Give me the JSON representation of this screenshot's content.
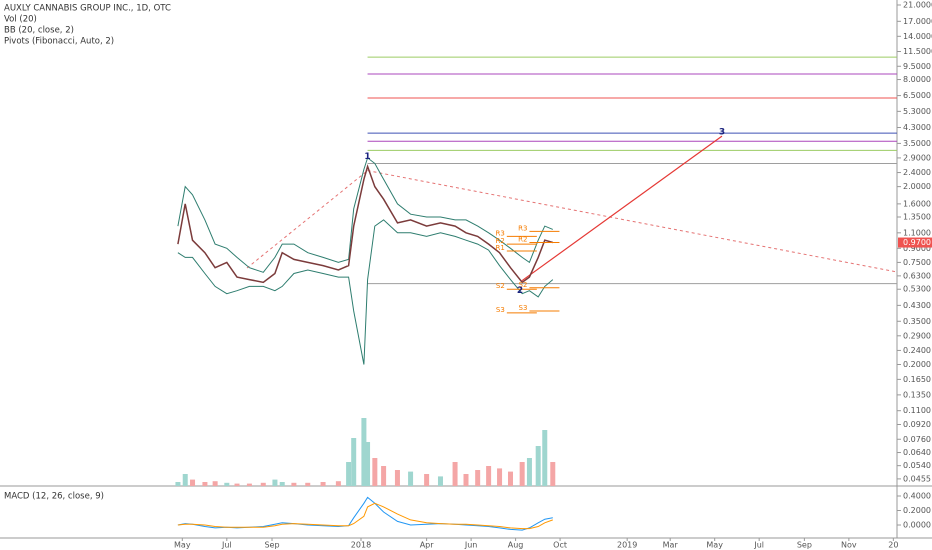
{
  "chart_data": [
    {
      "type": "line",
      "title": "AUXLY CANNABIS GROUP INC., 1D, OTC",
      "indicators": [
        "Vol (20)",
        "BB (20, close, 2)",
        "Pivots (Fibonacci, Auto, 2)"
      ],
      "log_scale": true,
      "xlim": [
        "2016-08-24",
        "2020-01-06"
      ],
      "ylim": [
        0.0415,
        22.4
      ],
      "yticks": [
        {
          "value": 21,
          "label": "21.0000"
        },
        {
          "value": 17,
          "label": "17.0000"
        },
        {
          "value": 14,
          "label": "14.0000"
        },
        {
          "value": 11.5,
          "label": "11.5000"
        },
        {
          "value": 9.5,
          "label": "9.5000"
        },
        {
          "value": 8,
          "label": "8.0000"
        },
        {
          "value": 6.5,
          "label": "6.5000"
        },
        {
          "value": 5.3,
          "label": "5.3000"
        },
        {
          "value": 4.3,
          "label": "4.3000"
        },
        {
          "value": 3.5,
          "label": "3.5000"
        },
        {
          "value": 2.9,
          "label": "2.9000"
        },
        {
          "value": 2.4,
          "label": "2.4000"
        },
        {
          "value": 2,
          "label": "2.0000"
        },
        {
          "value": 1.6,
          "label": "1.6000"
        },
        {
          "value": 1.35,
          "label": "1.3500"
        },
        {
          "value": 1.1,
          "label": "1.1000"
        },
        {
          "value": 0.9,
          "label": "0.9000"
        },
        {
          "value": 0.75,
          "label": "0.7500"
        },
        {
          "value": 0.63,
          "label": "0.6300"
        },
        {
          "value": 0.53,
          "label": "0.5300"
        },
        {
          "value": 0.43,
          "label": "0.4300"
        },
        {
          "value": 0.35,
          "label": "0.3500"
        },
        {
          "value": 0.29,
          "label": "0.2900"
        },
        {
          "value": 0.24,
          "label": "0.2400"
        },
        {
          "value": 0.2,
          "label": "0.2000"
        },
        {
          "value": 0.165,
          "label": "0.1650"
        },
        {
          "value": 0.135,
          "label": "0.1350"
        },
        {
          "value": 0.11,
          "label": "0.1100"
        },
        {
          "value": 0.092,
          "label": "0.0920"
        },
        {
          "value": 0.076,
          "label": "0.0760"
        },
        {
          "value": 0.064,
          "label": "0.0640"
        },
        {
          "value": 0.054,
          "label": "0.0540"
        },
        {
          "value": 0.0455,
          "label": "0.0455"
        }
      ],
      "last_price": {
        "value": 0.97,
        "label": "0.9700",
        "color": "#ef5350"
      },
      "x": [
        "2017-04-25",
        "2017-05-05",
        "2017-05-15",
        "2017-06-01",
        "2017-06-15",
        "2017-07-01",
        "2017-07-15",
        "2017-08-01",
        "2017-08-20",
        "2017-09-05",
        "2017-09-15",
        "2017-10-01",
        "2017-10-20",
        "2017-11-10",
        "2017-12-01",
        "2017-12-15",
        "2017-12-22",
        "2018-01-05",
        "2018-01-10",
        "2018-01-20",
        "2018-02-01",
        "2018-02-20",
        "2018-03-10",
        "2018-04-01",
        "2018-04-20",
        "2018-05-10",
        "2018-05-25",
        "2018-06-10",
        "2018-06-25",
        "2018-07-10",
        "2018-07-25",
        "2018-08-10",
        "2018-08-20",
        "2018-09-01",
        "2018-09-10",
        "2018-09-21"
      ],
      "series": [
        {
          "color": "#7b3b3b",
          "values": [
            0.95,
            1.6,
            1.0,
            0.85,
            0.7,
            0.75,
            0.62,
            0.6,
            0.58,
            0.65,
            0.85,
            0.78,
            0.75,
            0.72,
            0.68,
            0.72,
            1.2,
            2.2,
            2.6,
            2.0,
            1.7,
            1.25,
            1.3,
            1.2,
            1.25,
            1.2,
            1.1,
            1.05,
            0.95,
            0.85,
            0.7,
            0.58,
            0.62,
            0.8,
            1.0,
            0.97
          ]
        },
        {
          "color": "#2e7d6f",
          "values": [
            1.2,
            2.0,
            1.8,
            1.3,
            0.95,
            0.9,
            0.8,
            0.7,
            0.66,
            0.8,
            0.95,
            0.95,
            0.85,
            0.8,
            0.75,
            0.78,
            1.5,
            2.5,
            2.9,
            2.7,
            2.2,
            1.6,
            1.4,
            1.35,
            1.35,
            1.3,
            1.3,
            1.2,
            1.1,
            1.0,
            0.9,
            0.8,
            0.75,
            1.0,
            1.2,
            1.15
          ]
        },
        {
          "color": "#2e7d6f",
          "values": [
            0.85,
            0.8,
            0.8,
            0.65,
            0.55,
            0.5,
            0.52,
            0.55,
            0.55,
            0.52,
            0.55,
            0.65,
            0.68,
            0.65,
            0.62,
            0.62,
            0.4,
            0.2,
            0.6,
            1.2,
            1.3,
            1.1,
            1.1,
            1.05,
            1.1,
            1.05,
            1.0,
            0.95,
            0.88,
            0.72,
            0.6,
            0.5,
            0.52,
            0.48,
            0.55,
            0.6
          ]
        }
      ],
      "volume": {
        "ylim": [
          0,
          100
        ],
        "up_color": "#9fd6cf",
        "down_color": "#f4a6a6",
        "values": [
          5,
          15,
          8,
          5,
          6,
          4,
          3,
          3,
          4,
          8,
          5,
          4,
          4,
          5,
          6,
          30,
          60,
          85,
          55,
          35,
          25,
          20,
          18,
          15,
          12,
          30,
          15,
          20,
          25,
          22,
          18,
          30,
          35,
          50,
          70,
          30
        ]
      },
      "levels": [
        {
          "value": 10.7,
          "color": "#9ccc65"
        },
        {
          "value": 8.6,
          "color": "#ab47bc"
        },
        {
          "value": 6.3,
          "color": "#ef5350"
        },
        {
          "value": 4.0,
          "color": "#3f51b5"
        },
        {
          "value": 3.6,
          "color": "#ab47bc"
        },
        {
          "value": 3.2,
          "color": "#9ccc65"
        },
        {
          "value": 2.7,
          "color": "#9e9e9e"
        },
        {
          "value": 0.57,
          "color": "#9e9e9e"
        }
      ],
      "pivots": {
        "color": "#f57c00",
        "items": [
          {
            "label": "R3",
            "value": 1.05,
            "x": "2018-07-20"
          },
          {
            "label": "R2",
            "value": 0.95,
            "x": "2018-07-20"
          },
          {
            "label": "R1",
            "value": 0.87,
            "x": "2018-07-20"
          },
          {
            "label": "S2",
            "value": 0.53,
            "x": "2018-07-20"
          },
          {
            "label": "S3",
            "value": 0.39,
            "x": "2018-07-20"
          },
          {
            "label": "R3",
            "value": 1.12,
            "x": "2018-08-20"
          },
          {
            "label": "R2",
            "value": 0.97,
            "x": "2018-08-20"
          },
          {
            "label": "S2",
            "value": 0.54,
            "x": "2018-08-20"
          },
          {
            "label": "S3",
            "value": 0.4,
            "x": "2018-08-20"
          }
        ]
      },
      "waves": [
        {
          "label": "1",
          "x": "2018-01-10",
          "value": 2.95
        },
        {
          "label": "2",
          "x": "2018-08-07",
          "value": 0.52
        },
        {
          "label": "3",
          "x": "2019-05-11",
          "value": 4.05
        }
      ]
    },
    {
      "type": "line",
      "title": "MACD (12, 26, close, 9)",
      "ylim": [
        -0.179,
        0.524
      ],
      "yticks": [
        {
          "value": 0.4,
          "label": "0.4000"
        },
        {
          "value": 0.2,
          "label": "0.2000"
        },
        {
          "value": 0,
          "label": "0.0000"
        }
      ],
      "xticks": [
        {
          "value": "2017-05-01",
          "label": "May"
        },
        {
          "value": "2017-07-01",
          "label": "Jul"
        },
        {
          "value": "2017-09-01",
          "label": "Sep"
        },
        {
          "value": "2018-01-01",
          "label": "2018"
        },
        {
          "value": "2018-04-01",
          "label": "Apr"
        },
        {
          "value": "2018-06-01",
          "label": "Jun"
        },
        {
          "value": "2018-08-01",
          "label": "Aug"
        },
        {
          "value": "2018-10-01",
          "label": "Oct"
        },
        {
          "value": "2019-01-01",
          "label": "2019"
        },
        {
          "value": "2019-03-01",
          "label": "Mar"
        },
        {
          "value": "2019-05-01",
          "label": "May"
        },
        {
          "value": "2019-07-01",
          "label": "Jul"
        },
        {
          "value": "2019-09-01",
          "label": "Sep"
        },
        {
          "value": "2019-11-01",
          "label": "Nov"
        },
        {
          "value": "2020-01-01",
          "label": "20"
        }
      ],
      "series": [
        {
          "color": "#2196f3",
          "values": [
            0,
            0.02,
            0.01,
            -0.02,
            -0.04,
            -0.03,
            -0.04,
            -0.03,
            -0.02,
            0.01,
            0.03,
            0.02,
            0,
            -0.01,
            -0.02,
            -0.01,
            0.1,
            0.3,
            0.38,
            0.3,
            0.18,
            0.05,
            0,
            0.01,
            0.02,
            0.01,
            0,
            -0.01,
            -0.02,
            -0.04,
            -0.06,
            -0.07,
            -0.04,
            0.03,
            0.08,
            0.1
          ]
        },
        {
          "color": "#ff9800",
          "values": [
            0,
            0.01,
            0.01,
            0,
            -0.02,
            -0.03,
            -0.03,
            -0.03,
            -0.03,
            -0.01,
            0.01,
            0.02,
            0.01,
            0,
            -0.01,
            -0.01,
            0.02,
            0.12,
            0.25,
            0.3,
            0.25,
            0.15,
            0.07,
            0.03,
            0.02,
            0.01,
            0.01,
            0,
            -0.01,
            -0.02,
            -0.04,
            -0.05,
            -0.05,
            -0.02,
            0.03,
            0.07
          ]
        }
      ]
    }
  ]
}
